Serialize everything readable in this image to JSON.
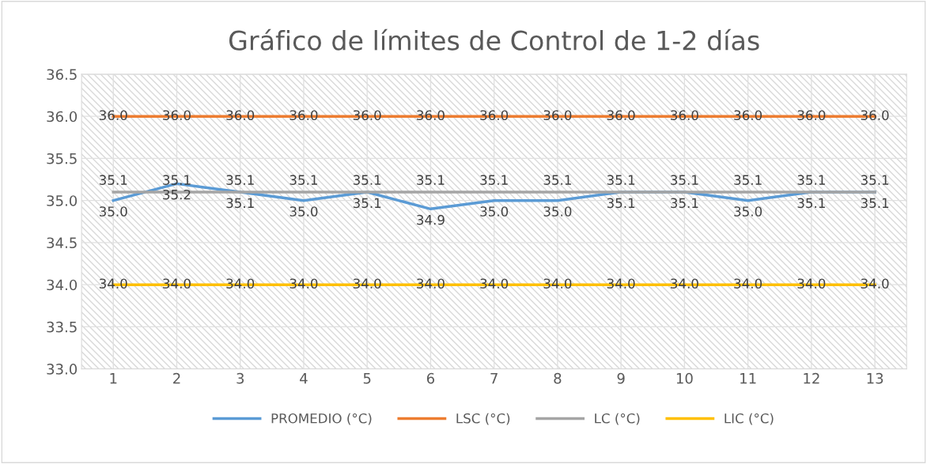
{
  "chart_data": {
    "type": "line",
    "title": "Gráfico de límites de Control de 1-2 días",
    "categories": [
      "1",
      "2",
      "3",
      "4",
      "5",
      "6",
      "7",
      "8",
      "9",
      "10",
      "11",
      "12",
      "13"
    ],
    "series": [
      {
        "name": "PROMEDIO (°C)",
        "color": "#5b9bd5",
        "values": [
          35.0,
          35.2,
          35.1,
          35.0,
          35.1,
          34.9,
          35.0,
          35.0,
          35.1,
          35.1,
          35.0,
          35.1,
          35.1
        ],
        "value_labels": [
          "35.0",
          "35.2",
          "35.1",
          "35.0",
          "35.1",
          "34.9",
          "35.0",
          "35.0",
          "35.1",
          "35.1",
          "35.0",
          "35.1",
          "35.1"
        ]
      },
      {
        "name": "LSC (°C)",
        "color": "#ed7d31",
        "values": [
          36.0,
          36.0,
          36.0,
          36.0,
          36.0,
          36.0,
          36.0,
          36.0,
          36.0,
          36.0,
          36.0,
          36.0,
          36.0
        ],
        "value_labels": [
          "36.0",
          "36.0",
          "36.0",
          "36.0",
          "36.0",
          "36.0",
          "36.0",
          "36.0",
          "36.0",
          "36.0",
          "36.0",
          "36.0",
          "36.0"
        ]
      },
      {
        "name": "LC (°C)",
        "color": "#a5a5a5",
        "values": [
          35.1,
          35.1,
          35.1,
          35.1,
          35.1,
          35.1,
          35.1,
          35.1,
          35.1,
          35.1,
          35.1,
          35.1,
          35.1
        ],
        "value_labels": [
          "35.1",
          "35.1",
          "35.1",
          "35.1",
          "35.1",
          "35.1",
          "35.1",
          "35.1",
          "35.1",
          "35.1",
          "35.1",
          "35.1",
          "35.1"
        ]
      },
      {
        "name": "LIC (°C)",
        "color": "#ffc000",
        "values": [
          34.0,
          34.0,
          34.0,
          34.0,
          34.0,
          34.0,
          34.0,
          34.0,
          34.0,
          34.0,
          34.0,
          34.0,
          34.0
        ],
        "value_labels": [
          "34.0",
          "34.0",
          "34.0",
          "34.0",
          "34.0",
          "34.0",
          "34.0",
          "34.0",
          "34.0",
          "34.0",
          "34.0",
          "34.0",
          "34.0"
        ]
      }
    ],
    "ylim": [
      33.0,
      36.5
    ],
    "yticks": [
      {
        "value": 33.0,
        "label": "33.0"
      },
      {
        "value": 33.5,
        "label": "33.5"
      },
      {
        "value": 34.0,
        "label": "34.0"
      },
      {
        "value": 34.5,
        "label": "34.5"
      },
      {
        "value": 35.0,
        "label": "35.0"
      },
      {
        "value": 35.5,
        "label": "35.5"
      },
      {
        "value": 36.0,
        "label": "36.0"
      },
      {
        "value": 36.5,
        "label": "36.5"
      }
    ],
    "grid": true,
    "legend": "bottom",
    "marker": "none",
    "line_style": "solid"
  }
}
